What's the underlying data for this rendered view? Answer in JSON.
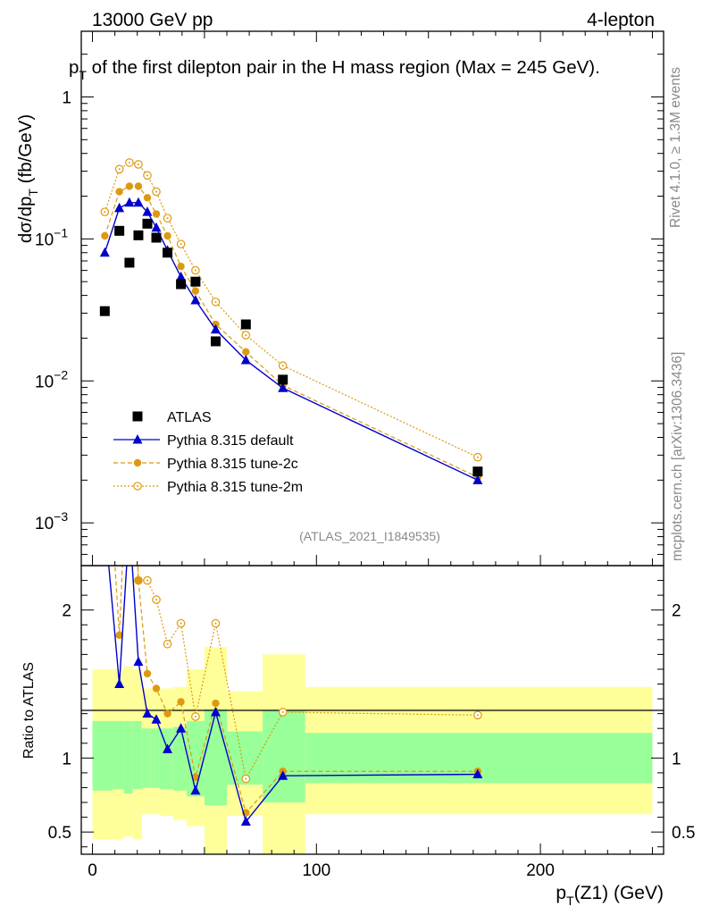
{
  "header": {
    "left": "13000 GeV pp",
    "right": "4-lepton"
  },
  "title": "p_T of the first dilepton pair in the H mass region (Max = 245 GeV).",
  "title_parts": {
    "p": "p",
    "sub": "T",
    "rest": " of the first dilepton pair in the H mass region (Max = 245 GeV)."
  },
  "side_labels": {
    "rivet": "Rivet 4.1.0, ≥ 1.3M events",
    "mcplots": "mcplots.cern.ch [arXiv:1306.3436]"
  },
  "analysis_id": "(ATLAS_2021_I1849535)",
  "axes": {
    "ylabel_main": "dσ/dp_T (fb/GeV)",
    "ylabel_main_parts": {
      "a": "dσ/dp",
      "sub": "T",
      "b": " (fb/GeV)"
    },
    "ylabel_ratio": "Ratio to ATLAS",
    "xlabel": "p_T(Z1) (GeV)",
    "xlabel_parts": {
      "a": "p",
      "sub": "T",
      "b": "(Z1) (GeV)"
    }
  },
  "legend": [
    {
      "label": "ATLAS",
      "color": "#000000",
      "marker": "square"
    },
    {
      "label": "Pythia 8.315 default",
      "color": "#0000cc",
      "marker": "triangle"
    },
    {
      "label": "Pythia 8.315 tune-2c",
      "color": "#dd9911",
      "marker": "circle"
    },
    {
      "label": "Pythia 8.315 tune-2m",
      "color": "#dd9911",
      "marker": "open-circle"
    }
  ],
  "chart_data": {
    "type": "line",
    "xlim": [
      -5,
      255
    ],
    "main_ylim": [
      0.0005,
      2.9
    ],
    "main_yscale": "log",
    "ratio_ylim": [
      0.35,
      2.3
    ],
    "xticks": [
      {
        "v": 0,
        "label": "0"
      },
      {
        "v": 100,
        "label": "100"
      },
      {
        "v": 200,
        "label": "200"
      }
    ],
    "main_yticks": [
      {
        "v": 0.001,
        "base": "10",
        "exp": "−3"
      },
      {
        "v": 0.01,
        "base": "10",
        "exp": "−2"
      },
      {
        "v": 0.1,
        "base": "10",
        "exp": "−1"
      },
      {
        "v": 1,
        "base": "1",
        "exp": ""
      }
    ],
    "ratio_yticks": [
      {
        "v": 0.5,
        "label": "0.5"
      },
      {
        "v": 1,
        "label": "1"
      },
      {
        "v": 2,
        "label": "2"
      }
    ],
    "x": [
      5.5,
      12,
      16.5,
      20.5,
      24.5,
      28.5,
      33.5,
      39.5,
      46,
      55,
      68.5,
      85,
      172
    ],
    "atlas": [
      0.031,
      0.114,
      0.068,
      0.106,
      0.128,
      0.102,
      0.08,
      0.048,
      0.05,
      0.019,
      0.025,
      0.0102,
      0.0023
    ],
    "bins": [
      [
        0,
        9,
        0.78,
        1.25,
        0.45,
        1.6
      ],
      [
        9,
        14,
        0.79,
        1.25,
        0.45,
        1.6
      ],
      [
        14,
        18,
        0.76,
        1.25,
        0.47,
        1.62
      ],
      [
        18,
        22,
        0.79,
        1.25,
        0.45,
        1.6
      ],
      [
        22,
        26,
        0.8,
        1.2,
        0.62,
        1.47
      ],
      [
        26,
        30,
        0.8,
        1.2,
        0.62,
        1.47
      ],
      [
        30,
        36,
        0.79,
        1.2,
        0.61,
        1.47
      ],
      [
        36,
        42,
        0.78,
        1.21,
        0.58,
        1.48
      ],
      [
        42,
        50,
        0.74,
        1.25,
        0.54,
        1.6
      ],
      [
        50,
        60,
        0.68,
        1.33,
        0.35,
        1.75
      ],
      [
        60,
        76,
        0.82,
        1.18,
        0.61,
        1.45
      ],
      [
        76,
        95,
        0.7,
        1.32,
        0.35,
        1.7
      ],
      [
        95,
        250,
        0.83,
        1.17,
        0.62,
        1.48
      ]
    ],
    "series": [
      {
        "name": "Pythia 8.315 default",
        "color": "#0000cc",
        "line": "solid",
        "marker": "triangle",
        "values": [
          0.08,
          0.165,
          0.18,
          0.18,
          0.155,
          0.12,
          0.083,
          0.054,
          0.037,
          0.023,
          0.014,
          0.0089,
          0.002
        ],
        "ratio": [
          2.6,
          1.5,
          2.6,
          1.65,
          1.3,
          1.26,
          1.06,
          1.2,
          0.78,
          1.31,
          0.57,
          0.88,
          0.89
        ]
      },
      {
        "name": "Pythia 8.315 tune-2c",
        "color": "#dd9911",
        "line": "dashed",
        "marker": "circle",
        "values": [
          0.105,
          0.215,
          0.235,
          0.235,
          0.195,
          0.15,
          0.105,
          0.064,
          0.043,
          0.025,
          0.016,
          0.0093,
          0.0021
        ],
        "ratio": [
          3.4,
          1.83,
          3.4,
          2.2,
          1.57,
          1.47,
          1.3,
          1.38,
          0.87,
          1.37,
          0.63,
          0.91,
          0.91
        ]
      },
      {
        "name": "Pythia 8.315 tune-2m",
        "color": "#dd9911",
        "line": "dotted",
        "marker": "open-circle",
        "values": [
          0.155,
          0.31,
          0.345,
          0.335,
          0.28,
          0.215,
          0.14,
          0.092,
          0.06,
          0.036,
          0.021,
          0.0128,
          0.0029
        ],
        "ratio": [
          5.0,
          2.65,
          5.0,
          2.2,
          2.2,
          2.07,
          1.77,
          1.91,
          1.28,
          1.91,
          0.86,
          1.31,
          1.29
        ]
      }
    ]
  }
}
